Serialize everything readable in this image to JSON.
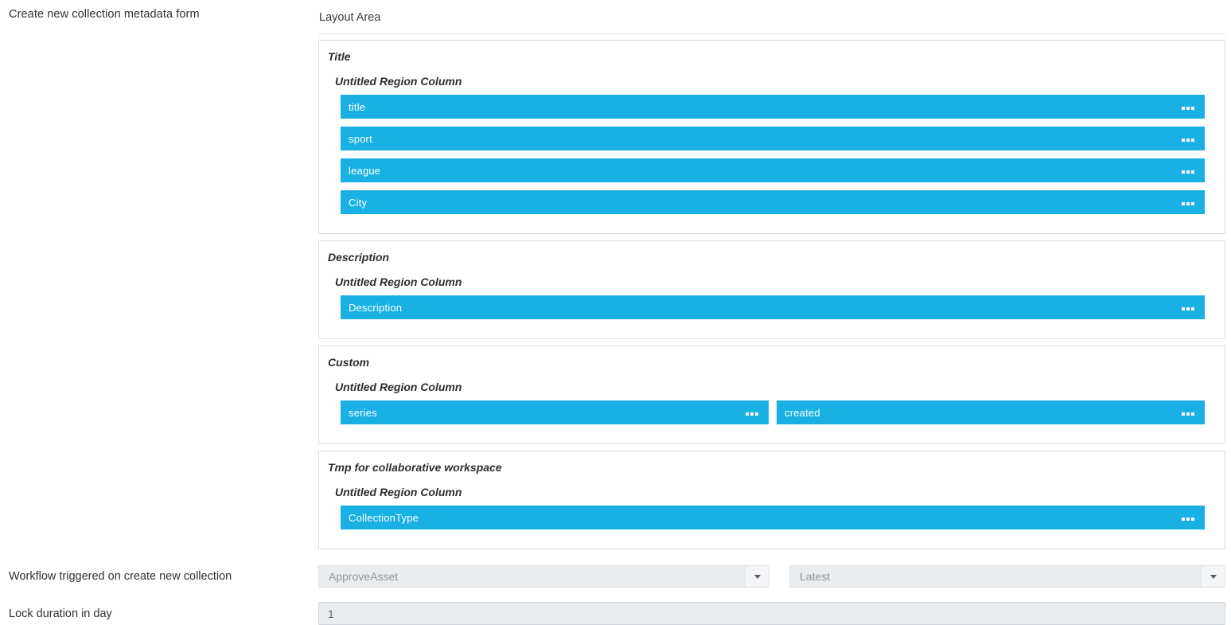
{
  "labels": {
    "form_title": "Create new collection metadata form",
    "workflow": "Workflow triggered on create new collection",
    "lock_duration": "Lock duration in day"
  },
  "layout_area": {
    "title": "Layout Area"
  },
  "sections": [
    {
      "title": "Title",
      "region": "Untitled Region Column",
      "fields": [
        "title",
        "sport",
        "league",
        "City"
      ]
    },
    {
      "title": "Description",
      "region": "Untitled Region Column",
      "fields": [
        "Description"
      ]
    },
    {
      "title": "Custom",
      "region": "Untitled Region Column",
      "fields": [
        "series",
        "created"
      ]
    },
    {
      "title": "Tmp for collaborative workspace",
      "region": "Untitled Region Column",
      "fields": [
        "CollectionType"
      ]
    }
  ],
  "workflow_controls": {
    "workflow_select_value": "ApproveAsset",
    "version_select_value": "Latest"
  },
  "lock_input": {
    "value": "1"
  },
  "colors": {
    "field_bar_blue": "#19b1e3",
    "control_background": "#e9ecef",
    "section_border": "#dcdcdc"
  }
}
